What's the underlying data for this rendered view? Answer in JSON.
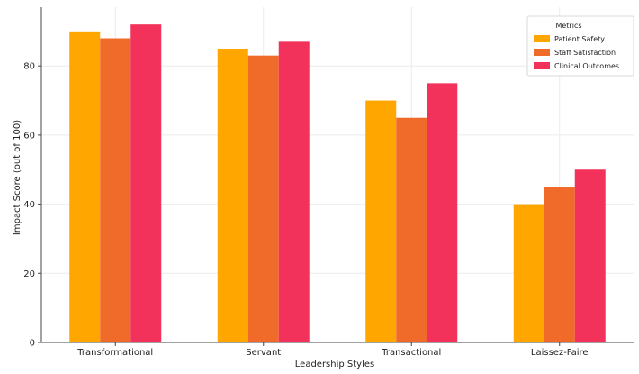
{
  "chart_data": {
    "type": "bar",
    "title": "",
    "xlabel": "Leadership Styles",
    "ylabel": "Impact Score (out of 100)",
    "categories": [
      "Transformational",
      "Servant",
      "Transactional",
      "Laissez-Faire"
    ],
    "series": [
      {
        "name": "Patient Safety",
        "color": "#ffa600",
        "values": [
          90,
          85,
          70,
          40
        ]
      },
      {
        "name": "Staff Satisfaction",
        "color": "#f06a2a",
        "values": [
          88,
          83,
          65,
          45
        ]
      },
      {
        "name": "Clinical Outcomes",
        "color": "#f2325a",
        "values": [
          92,
          87,
          75,
          50
        ]
      }
    ],
    "ylim": [
      0,
      97
    ],
    "yticks": [
      0,
      20,
      40,
      60,
      80
    ],
    "grid": true,
    "legend": {
      "title": "Metrics",
      "position": "top-right"
    }
  }
}
